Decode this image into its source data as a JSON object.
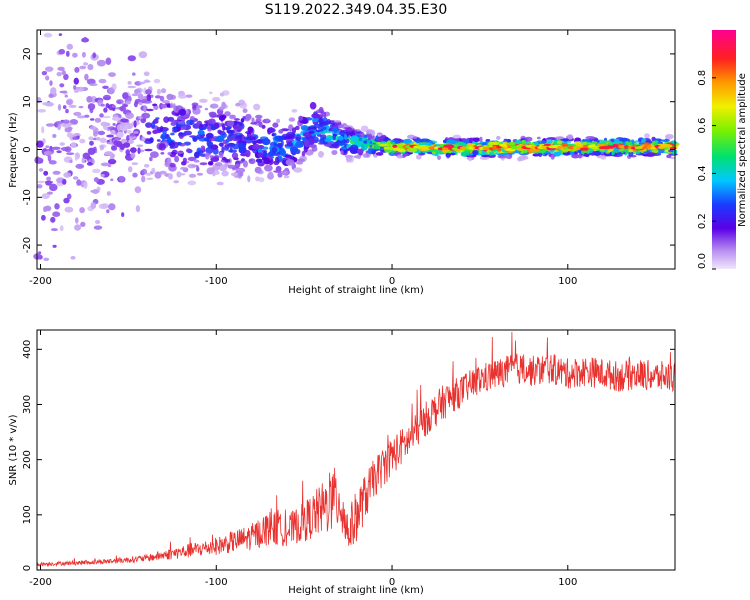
{
  "figure_title": "S119.2022.349.04.35.E30",
  "colors": {
    "spectro_low": "#c9a6f5",
    "spectro_mid": "#5a00e6",
    "snr_line": "#e8322f",
    "frame": "#000000"
  },
  "chart_data": [
    {
      "type": "heatmap",
      "title": "S119.2022.349.04.35.E30",
      "xlabel": "Height of straight line (km)",
      "ylabel": "Frequency (Hz)",
      "xlim": [
        -202,
        161
      ],
      "ylim": [
        -25,
        25
      ],
      "xticks": [
        -200,
        -100,
        0,
        100
      ],
      "yticks": [
        -20,
        -10,
        0,
        10,
        20
      ],
      "grid": false,
      "colorbar": {
        "label": "Normalized spectral amplitude",
        "range": [
          0.0,
          1.0
        ],
        "ticks": [
          "0.0",
          "0.2",
          "0.4",
          "0.6",
          "0.8"
        ],
        "colormap": "rainbow (purple → blue → cyan → green → yellow → red → magenta)"
      },
      "signal_track": [
        {
          "x": -200,
          "y": 0,
          "amp": 0.05,
          "spread": 25
        },
        {
          "x": -150,
          "y": 5,
          "amp": 0.2,
          "spread": 10
        },
        {
          "x": -120,
          "y": 3,
          "amp": 0.25,
          "spread": 8
        },
        {
          "x": -90,
          "y": 2,
          "amp": 0.25,
          "spread": 7
        },
        {
          "x": -60,
          "y": 0,
          "amp": 0.3,
          "spread": 5
        },
        {
          "x": -45,
          "y": 5,
          "amp": 0.3,
          "spread": 5
        },
        {
          "x": -30,
          "y": 2,
          "amp": 0.4,
          "spread": 3
        },
        {
          "x": -10,
          "y": 1,
          "amp": 0.45,
          "spread": 2
        },
        {
          "x": 0,
          "y": 0.5,
          "amp": 0.7,
          "spread": 1.5
        },
        {
          "x": 50,
          "y": 0.3,
          "amp": 0.85,
          "spread": 1.5
        },
        {
          "x": 100,
          "y": 0.5,
          "amp": 0.85,
          "spread": 1.5
        },
        {
          "x": 161,
          "y": 0.5,
          "amp": 0.8,
          "spread": 1.5
        }
      ]
    },
    {
      "type": "line",
      "xlabel": "Height of straight line (km)",
      "ylabel": "SNR (10 * v/v)",
      "xlim": [
        -202,
        161
      ],
      "ylim": [
        0,
        435
      ],
      "xticks": [
        -200,
        -100,
        0,
        100
      ],
      "yticks": [
        0,
        100,
        200,
        300,
        400
      ],
      "grid": false,
      "series": [
        {
          "x": [
            -200,
            -180,
            -160,
            -140,
            -120,
            -100,
            -80,
            -70,
            -60,
            -50,
            -40,
            -30,
            -25,
            -20,
            -10,
            0,
            10,
            20,
            30,
            40,
            50,
            60,
            70,
            80,
            90,
            100,
            110,
            120,
            130,
            140,
            150,
            161
          ],
          "values": [
            10,
            12,
            15,
            20,
            30,
            40,
            55,
            70,
            65,
            80,
            100,
            120,
            60,
            90,
            160,
            200,
            230,
            270,
            300,
            320,
            340,
            350,
            360,
            355,
            360,
            350,
            355,
            350,
            345,
            350,
            345,
            345
          ],
          "noise": [
            4,
            5,
            6,
            8,
            15,
            20,
            30,
            40,
            35,
            45,
            60,
            80,
            50,
            60,
            45,
            45,
            40,
            40,
            40,
            35,
            35,
            35,
            35,
            35,
            35,
            35,
            35,
            35,
            35,
            35,
            35,
            35
          ]
        }
      ]
    }
  ]
}
